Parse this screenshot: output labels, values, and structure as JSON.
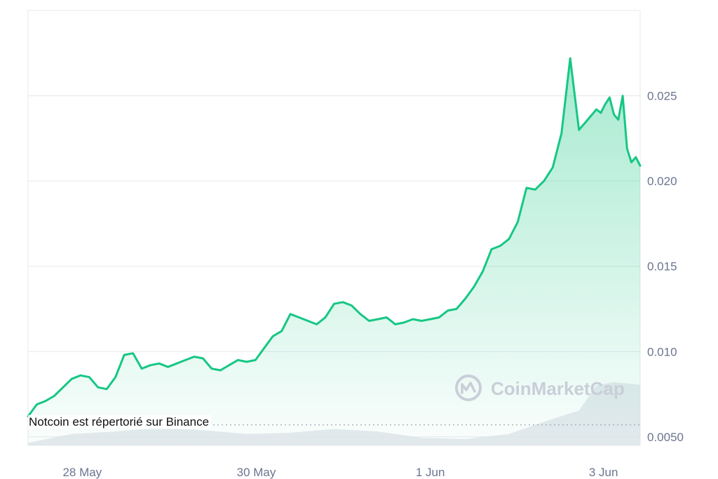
{
  "chart_data": {
    "type": "area",
    "title": "",
    "xlabel": "",
    "ylabel": "",
    "x_tick_labels": [
      "28 May",
      "30 May",
      "1 Jun",
      "3 Jun"
    ],
    "x_tick_positions": [
      0.62,
      2.61,
      4.6,
      6.58
    ],
    "y_tick_labels": [
      "0.025",
      "0.020",
      "0.015",
      "0.010",
      "0.0050"
    ],
    "y_tick_values": [
      0.025,
      0.02,
      0.015,
      0.01,
      0.005
    ],
    "ylim": [
      0.0045,
      0.03
    ],
    "xlim": [
      0,
      7.0
    ],
    "grid": "horizontal",
    "colors": {
      "line": "#16c784",
      "fill_top": "#16c784",
      "volume": "#dfe3ea",
      "axis_text": "#6b7590",
      "grid": "#e6e8ec"
    },
    "series": [
      {
        "x": [
          0,
          0.1,
          0.2,
          0.3,
          0.4,
          0.5,
          0.6,
          0.7,
          0.8,
          0.9,
          1.0,
          1.1,
          1.2,
          1.3,
          1.4,
          1.5,
          1.6,
          1.7,
          1.8,
          1.9,
          2.0,
          2.1,
          2.2,
          2.3,
          2.4,
          2.5,
          2.6,
          2.7,
          2.8,
          2.9,
          3.0,
          3.1,
          3.2,
          3.3,
          3.4,
          3.5,
          3.6,
          3.7,
          3.8,
          3.9,
          4.0,
          4.1,
          4.2,
          4.3,
          4.4,
          4.5,
          4.6,
          4.7,
          4.8,
          4.9,
          5.0,
          5.1,
          5.2,
          5.3,
          5.4,
          5.5,
          5.6,
          5.7,
          5.8,
          5.9,
          6.0,
          6.1,
          6.2,
          6.3,
          6.4,
          6.5,
          6.55,
          6.6,
          6.65,
          6.7,
          6.75,
          6.8,
          6.85,
          6.9,
          6.95,
          7.0
        ],
        "values": [
          0.0062,
          0.0069,
          0.0071,
          0.0074,
          0.0079,
          0.0084,
          0.0086,
          0.0085,
          0.0079,
          0.0078,
          0.0085,
          0.0098,
          0.0099,
          0.009,
          0.0092,
          0.0093,
          0.0091,
          0.0093,
          0.0095,
          0.0097,
          0.0096,
          0.009,
          0.0089,
          0.0092,
          0.0095,
          0.0094,
          0.0095,
          0.0102,
          0.0109,
          0.0112,
          0.0122,
          0.012,
          0.0118,
          0.0116,
          0.012,
          0.0128,
          0.0129,
          0.0127,
          0.0122,
          0.0118,
          0.0119,
          0.012,
          0.0116,
          0.0117,
          0.0119,
          0.0118,
          0.0119,
          0.012,
          0.0124,
          0.0125,
          0.0131,
          0.0138,
          0.0147,
          0.016,
          0.0162,
          0.0166,
          0.0176,
          0.0196,
          0.0195,
          0.02,
          0.0208,
          0.0228,
          0.0272,
          0.023,
          0.0236,
          0.0242,
          0.024,
          0.0245,
          0.0249,
          0.0239,
          0.0236,
          0.025,
          0.0219,
          0.0211,
          0.0214,
          0.0209
        ]
      }
    ],
    "volume": {
      "x": [
        0,
        0.5,
        1.0,
        1.5,
        2.0,
        2.5,
        3.0,
        3.5,
        4.0,
        4.5,
        5.0,
        5.5,
        6.0,
        6.3,
        6.5,
        6.7,
        7.0
      ],
      "values": [
        0.04,
        0.18,
        0.22,
        0.28,
        0.24,
        0.18,
        0.2,
        0.26,
        0.22,
        0.12,
        0.1,
        0.18,
        0.42,
        0.55,
        0.95,
        1.0,
        0.96
      ]
    },
    "annotations": [
      {
        "label": "Notcoin est répertorié sur Binance",
        "y": 0.0057
      }
    ],
    "watermark": "CoinMarketCap"
  }
}
